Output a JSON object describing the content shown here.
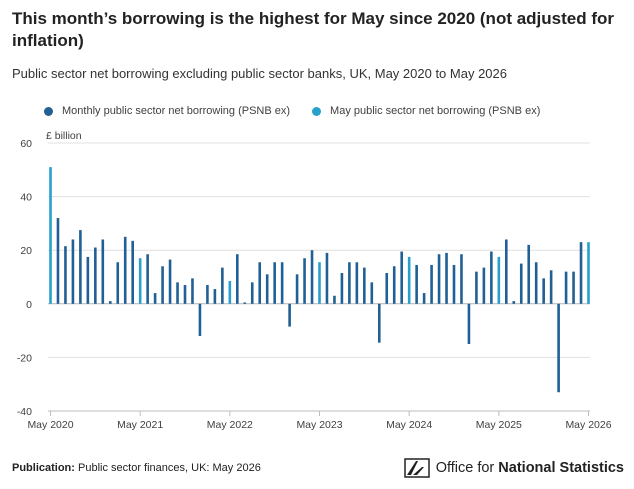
{
  "title": "This month’s borrowing is the highest for May since 2020 (not adjusted for inflation)",
  "subtitle": "Public sector net borrowing excluding public sector banks, UK, May 2020 to May 2026",
  "footer": {
    "publication_label": "Publication:",
    "publication_value": "Public sector finances, UK: May 2026"
  },
  "logo": {
    "name_regular": "Office for ",
    "name_bold": "National Statistics",
    "icon": "ons-logo-icon"
  },
  "colors": {
    "monthly": "#206095",
    "may": "#27a0cc",
    "axis": "#bebebe",
    "grid": "#e0e0e0",
    "zero_line": "#b3b3b3"
  },
  "chart_data": {
    "type": "bar",
    "title": "This month’s borrowing is the highest for May since 2020 (not adjusted for inflation)",
    "ylabel": "£ billion",
    "ylim": [
      -40,
      60
    ],
    "yticks": [
      -40,
      -20,
      0,
      20,
      40,
      60
    ],
    "xtick_labels": [
      "May 2020",
      "May 2021",
      "May 2022",
      "May 2023",
      "May 2024",
      "May 2025",
      "May 2026"
    ],
    "grid": true,
    "legend_position": "top",
    "series": [
      {
        "name": "Monthly public sector net borrowing (PSNB ex)",
        "color": "#206095"
      },
      {
        "name": "May public sector net borrowing (PSNB ex)",
        "color": "#27a0cc"
      }
    ],
    "categories": [
      "May 2020",
      "Jun 2020",
      "Jul 2020",
      "Aug 2020",
      "Sep 2020",
      "Oct 2020",
      "Nov 2020",
      "Dec 2020",
      "Jan 2021",
      "Feb 2021",
      "Mar 2021",
      "Apr 2021",
      "May 2021",
      "Jun 2021",
      "Jul 2021",
      "Aug 2021",
      "Sep 2021",
      "Oct 2021",
      "Nov 2021",
      "Dec 2021",
      "Jan 2022",
      "Feb 2022",
      "Mar 2022",
      "Apr 2022",
      "May 2022",
      "Jun 2022",
      "Jul 2022",
      "Aug 2022",
      "Sep 2022",
      "Oct 2022",
      "Nov 2022",
      "Dec 2022",
      "Jan 2023",
      "Feb 2023",
      "Mar 2023",
      "Apr 2023",
      "May 2023",
      "Jun 2023",
      "Jul 2023",
      "Aug 2023",
      "Sep 2023",
      "Oct 2023",
      "Nov 2023",
      "Dec 2023",
      "Jan 2024",
      "Feb 2024",
      "Mar 2024",
      "Apr 2024",
      "May 2024",
      "Jun 2024",
      "Jul 2024",
      "Aug 2024",
      "Sep 2024",
      "Oct 2024",
      "Nov 2024",
      "Dec 2024",
      "Jan 2025",
      "Feb 2025",
      "Mar 2025",
      "Apr 2025",
      "May 2025",
      "Jun 2025",
      "Jul 2025",
      "Aug 2025",
      "Sep 2025",
      "Oct 2025",
      "Nov 2025",
      "Dec 2025",
      "Jan 2026",
      "Feb 2026",
      "Mar 2026",
      "Apr 2026",
      "May 2026"
    ],
    "values": [
      51.0,
      32.0,
      21.5,
      24.0,
      27.5,
      17.5,
      21.0,
      24.0,
      1.0,
      15.5,
      25.0,
      23.5,
      17.0,
      18.5,
      4.0,
      14.0,
      16.5,
      8.0,
      7.0,
      9.5,
      -12.0,
      7.0,
      5.5,
      13.5,
      8.5,
      18.5,
      0.5,
      8.0,
      15.5,
      11.0,
      15.5,
      15.5,
      -8.5,
      11.0,
      17.0,
      20.0,
      15.5,
      19.0,
      3.0,
      11.5,
      15.5,
      15.5,
      13.5,
      8.0,
      -14.5,
      11.5,
      14.0,
      19.5,
      17.5,
      14.5,
      4.0,
      14.5,
      18.5,
      19.0,
      14.5,
      18.5,
      -15.0,
      12.0,
      13.5,
      19.5,
      17.5,
      24.0,
      1.0,
      15.0,
      22.0,
      15.5,
      9.5,
      12.5,
      -33.0,
      12.0,
      12.0,
      23.0,
      23.0
    ],
    "is_may": [
      true,
      false,
      false,
      false,
      false,
      false,
      false,
      false,
      false,
      false,
      false,
      false,
      true,
      false,
      false,
      false,
      false,
      false,
      false,
      false,
      false,
      false,
      false,
      false,
      true,
      false,
      false,
      false,
      false,
      false,
      false,
      false,
      false,
      false,
      false,
      false,
      true,
      false,
      false,
      false,
      false,
      false,
      false,
      false,
      false,
      false,
      false,
      false,
      true,
      false,
      false,
      false,
      false,
      false,
      false,
      false,
      false,
      false,
      false,
      false,
      true,
      false,
      false,
      false,
      false,
      false,
      false,
      false,
      false,
      false,
      false,
      false,
      true
    ]
  }
}
